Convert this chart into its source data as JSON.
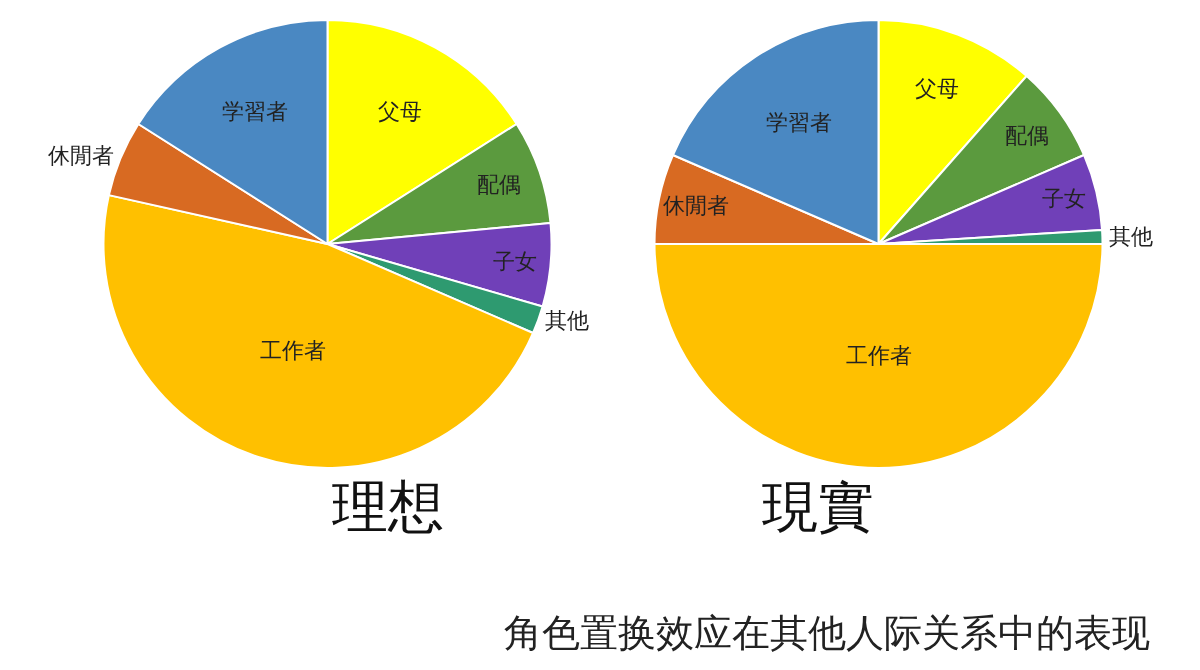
{
  "chart_data": [
    {
      "type": "pie",
      "title": "理想",
      "categories": [
        "父母",
        "配偶",
        "子女",
        "其他",
        "工作者",
        "休閒者",
        "学習者"
      ],
      "values": [
        16,
        7.5,
        6,
        2,
        47,
        5.5,
        16
      ],
      "colors": [
        "#ffff00",
        "#5b9a3e",
        "#7040b8",
        "#2e9a70",
        "#ffc000",
        "#d86a22",
        "#4a88c2"
      ],
      "legend": false
    },
    {
      "type": "pie",
      "title": "現實",
      "categories": [
        "父母",
        "配偶",
        "子女",
        "其他",
        "工作者",
        "休閒者",
        "学習者"
      ],
      "values": [
        11.5,
        7,
        5.5,
        1,
        50,
        6.5,
        18.5
      ],
      "colors": [
        "#ffff00",
        "#5b9a3e",
        "#7040b8",
        "#2e9a70",
        "#ffc000",
        "#d86a22",
        "#4a88c2"
      ],
      "legend": false,
      "annotations": [
        "角色置换效应在其他人际关系中的表现"
      ]
    }
  ]
}
